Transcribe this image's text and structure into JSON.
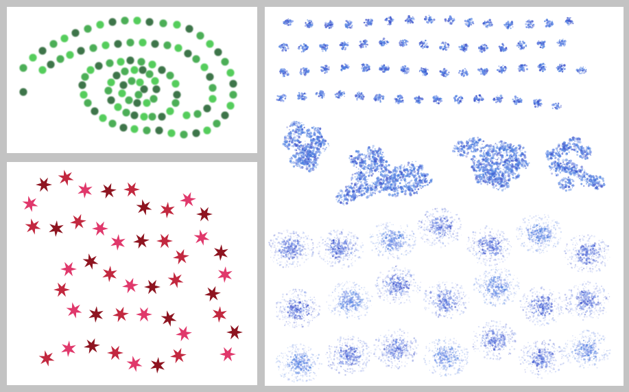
{
  "canvas": {
    "background": "#c3c3c3",
    "panel_background": "#ffffff"
  },
  "panels": [
    {
      "id": "green-dots-stroke",
      "brush": "soft-dot",
      "colors": [
        "#2e6b3a",
        "#3ca84a",
        "#46c94f"
      ]
    },
    {
      "id": "red-stars-stroke",
      "brush": "star",
      "colors": [
        "#8e1420",
        "#c2283f",
        "#e0386b"
      ]
    },
    {
      "id": "blue-speckle-strokes",
      "brush": "scatter-speckle",
      "colors": [
        "#3b4fc9",
        "#4b7fe0",
        "#6e8fe8",
        "#8fa0e8"
      ]
    }
  ]
}
